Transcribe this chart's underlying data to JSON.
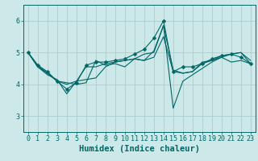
{
  "xlabel": "Humidex (Indice chaleur)",
  "ylabel": "",
  "bg_color": "#cce8e8",
  "grid_color": "#aacfcf",
  "line_color": "#006666",
  "xlim": [
    -0.5,
    23.5
  ],
  "ylim": [
    2.5,
    6.5
  ],
  "xticks": [
    0,
    1,
    2,
    3,
    4,
    5,
    6,
    7,
    8,
    9,
    10,
    11,
    12,
    13,
    14,
    15,
    16,
    17,
    18,
    19,
    20,
    21,
    22,
    23
  ],
  "yticks": [
    3,
    4,
    5,
    6
  ],
  "series": [
    [
      5.0,
      4.6,
      4.4,
      4.1,
      3.85,
      4.05,
      4.6,
      4.7,
      4.7,
      4.75,
      4.8,
      4.95,
      5.1,
      5.45,
      6.0,
      4.4,
      4.55,
      4.55,
      4.65,
      4.8,
      4.9,
      4.95,
      4.85,
      4.65
    ],
    [
      5.0,
      4.55,
      4.35,
      4.1,
      4.05,
      4.0,
      4.05,
      4.75,
      4.6,
      4.65,
      4.55,
      4.8,
      4.95,
      5.0,
      5.85,
      4.45,
      4.35,
      4.4,
      4.7,
      4.75,
      4.85,
      4.95,
      5.0,
      4.75
    ],
    [
      5.0,
      4.55,
      4.3,
      4.15,
      3.7,
      4.1,
      4.55,
      4.55,
      4.65,
      4.7,
      4.75,
      4.8,
      4.75,
      5.05,
      5.85,
      3.25,
      4.1,
      4.3,
      4.5,
      4.7,
      4.85,
      4.7,
      4.75,
      4.65
    ],
    [
      5.0,
      4.6,
      4.35,
      4.1,
      4.0,
      4.1,
      4.15,
      4.2,
      4.55,
      4.7,
      4.75,
      4.8,
      4.75,
      4.85,
      5.5,
      4.4,
      4.35,
      4.4,
      4.65,
      4.75,
      4.9,
      4.95,
      5.0,
      4.65
    ]
  ],
  "marker_size": 2.5,
  "font_size_ticks": 6,
  "font_size_xlabel": 7.5
}
